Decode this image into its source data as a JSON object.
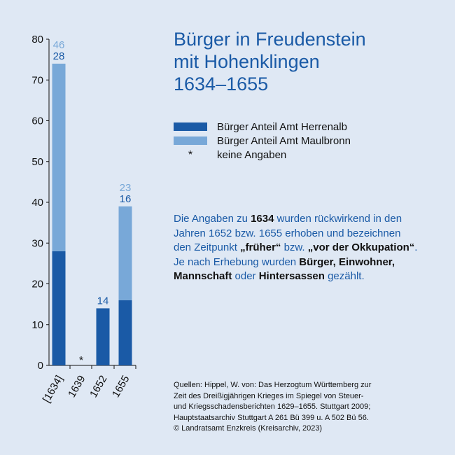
{
  "title": {
    "line1": "Bürger in Freudenstein",
    "line2": "mit Hohenklingen",
    "line3": "1634–1655"
  },
  "legend": [
    {
      "label": "Bürger Anteil Amt Herrenalb",
      "color": "#1a5aa6"
    },
    {
      "label": "Bürger Anteil Amt Maulbronn",
      "color": "#78a8d8"
    },
    {
      "label": "keine Angaben",
      "symbol": "*"
    }
  ],
  "note": {
    "p1": "Die Angaben zu ",
    "b1": "1634",
    "p2": " wurden rückwirkend in den Jahren 1652 bzw. 1655 erhoben und bezeichnen den Zeitpunkt ",
    "b2": "„früher“",
    "p3": " bzw. ",
    "b3": "„vor der Okkupation“",
    "p4": ". Je nach Erhebung wurden ",
    "b4": "Bürger, Einwohner, Mannschaft",
    "p5": " oder ",
    "b5": "Hintersassen",
    "p6": " gezählt."
  },
  "sources": {
    "line1": "Quellen: Hippel, W. von: Das Herzogtum Württemberg zur",
    "line2": "Zeit des Dreißigjährigen Krieges im Spiegel von Steuer-",
    "line3": "und Kriegsschadensberichten 1629–1655. Stuttgart 2009;",
    "line4": "Hauptstaatsarchiv Stuttgart A 261 Bü 399 u. A 502 Bü 56.",
    "line5": "© Landratsamt Enzkreis (Kreisarchiv, 2023)"
  },
  "chart_data": {
    "type": "bar",
    "stacked": true,
    "categories": [
      "[1634]",
      "1639",
      "1652",
      "1655"
    ],
    "series": [
      {
        "name": "Bürger Anteil Amt Herrenalb",
        "color": "#1a5aa6",
        "values": [
          28,
          null,
          14,
          16
        ]
      },
      {
        "name": "Bürger Anteil Amt Maulbronn",
        "color": "#78a8d8",
        "values": [
          46,
          null,
          null,
          23
        ]
      }
    ],
    "no_data_marker": "*",
    "no_data_categories": [
      "1639"
    ],
    "ylim": [
      0,
      80
    ],
    "yticks": [
      0,
      10,
      20,
      30,
      40,
      50,
      60,
      70,
      80
    ],
    "xlabel": "",
    "ylabel": ""
  }
}
